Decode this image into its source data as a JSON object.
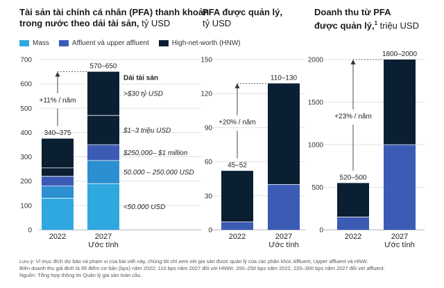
{
  "panels_titles": {
    "p1": {
      "title": "Tài sản tài chính cá nhân (PFA) thanh khoản",
      "title2": "trong nước theo dải tài sản,",
      "unit": " tỷ USD"
    },
    "p2": {
      "title": "PFA được quản lý,",
      "unit": "tỷ USD"
    },
    "p3": {
      "title": "Doanh thu từ PFA",
      "title2": "được quản lý,",
      "sup": "1",
      "unit": " triệu USD"
    }
  },
  "legend": [
    {
      "label": "Mass",
      "color": "#2fa8e0"
    },
    {
      "label": "Affluent và upper affluent",
      "color": "#3b5bb5"
    },
    {
      "label": "High-net-worth (HNW)",
      "color": "#0b1f33"
    }
  ],
  "segment_header": "Dải tài sản",
  "segment_labels": [
    "<50.000 USD",
    "50.000 – 250.000 USD",
    "$250,000– $1 million",
    "$1–3 triệu USD",
    ">$30 tỷ USD"
  ],
  "notes": [
    "Lưu ý: Vì mục đích dự báo và phạm vi của bài viết này, chúng tôi chỉ xem xét gia sản được quản lý của các phân khúc Affluent, Upper affluent và HNW.",
    "Biên doanh thu giả định là 95 điểm cơ bản (bps) năm 2022; 110 bps năm 2027 đối với HNWI; 200–250 bps năm 2022, 220–300 bps năm 2027 đối với affluent.",
    "Nguồn: Tổng hợp thông tin Quản lý gia sản toàn cầu."
  ],
  "chart_data": [
    {
      "type": "bar",
      "stacked": true,
      "title": "Tài sản tài chính cá nhân (PFA) thanh khoản trong nước theo dải tài sản, tỷ USD",
      "categories": [
        "2022",
        "2027"
      ],
      "category_sublabels": [
        "",
        "Ước tính"
      ],
      "ylim": [
        0,
        700
      ],
      "yticks": [
        0,
        100,
        200,
        300,
        400,
        500,
        600,
        700
      ],
      "series": [
        {
          "name": "<50.000 USD",
          "color": "#2fa8e0",
          "values": [
            130,
            190
          ]
        },
        {
          "name": "50.000 – 250.000 USD",
          "color": "#2b8fd0",
          "values": [
            50,
            95
          ]
        },
        {
          "name": "$250,000– $1 million",
          "color": "#3b5bb5",
          "values": [
            40,
            65
          ]
        },
        {
          "name": "$1–3 triệu USD",
          "color": "#0b1f33",
          "values": [
            35,
            120
          ]
        },
        {
          "name": ">$30 tỷ USD",
          "color": "#0b1f33",
          "values": [
            120,
            180
          ]
        }
      ],
      "total_labels": [
        "340–375",
        "570–650"
      ],
      "growth_label": "+11% / năm"
    },
    {
      "type": "bar",
      "stacked": true,
      "title": "PFA được quản lý, tỷ USD",
      "categories": [
        "2022",
        "2027"
      ],
      "category_sublabels": [
        "",
        "Ước tính"
      ],
      "ylim": [
        0,
        150
      ],
      "yticks": [
        0,
        30,
        60,
        90,
        120,
        150
      ],
      "series": [
        {
          "name": "Affluent và upper affluent",
          "color": "#3b5bb5",
          "values": [
            7,
            40
          ]
        },
        {
          "name": "High-net-worth (HNW)",
          "color": "#0b1f33",
          "values": [
            45,
            89
          ]
        }
      ],
      "total_labels": [
        "45–52",
        "110–130"
      ],
      "growth_label": "+20% / năm"
    },
    {
      "type": "bar",
      "stacked": true,
      "title": "Doanh thu từ PFA được quản lý, triệu USD",
      "categories": [
        "2022",
        "2027"
      ],
      "category_sublabels": [
        "",
        "Ước tính"
      ],
      "ylim": [
        0,
        2000
      ],
      "yticks": [
        0,
        500,
        1000,
        1500,
        2000
      ],
      "series": [
        {
          "name": "Affluent và upper affluent",
          "color": "#3b5bb5",
          "values": [
            150,
            1000
          ]
        },
        {
          "name": "High-net-worth (HNW)",
          "color": "#0b1f33",
          "values": [
            400,
            1000
          ]
        }
      ],
      "total_labels": [
        "520–500",
        "1800–2000"
      ],
      "growth_label": "+23% / năm"
    }
  ]
}
